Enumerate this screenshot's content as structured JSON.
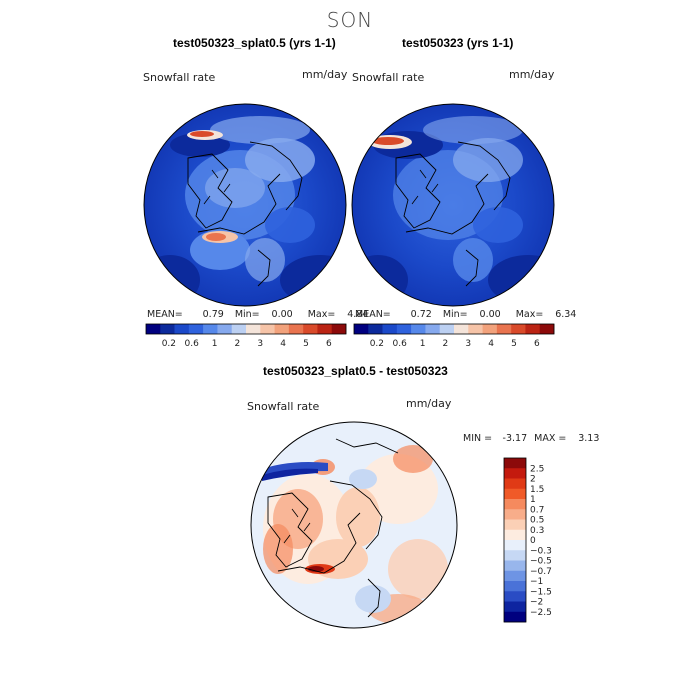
{
  "season": "SON",
  "panels": [
    {
      "title": "test050323_splat0.5 (yrs 1-1)",
      "variable": "Snowfall rate",
      "units": "mm/day",
      "stats": {
        "mean_label": "MEAN=",
        "mean": "0.79",
        "min_label": "Min=",
        "min": "0.00",
        "max_label": "Max=",
        "max": "4.84"
      }
    },
    {
      "title": "test050323 (yrs 1-1)",
      "variable": "Snowfall rate",
      "units": "mm/day",
      "stats": {
        "mean_label": "MEAN=",
        "mean": "0.72",
        "min_label": "Min=",
        "min": "0.00",
        "max_label": "Max=",
        "max": "6.34"
      }
    },
    {
      "title": "test050323_splat0.5 - test050323",
      "variable": "Snowfall rate",
      "units": "mm/day",
      "stats": {
        "min_label": "MIN =",
        "min": "-3.17",
        "max_label": "MAX =",
        "max": "3.13"
      }
    }
  ],
  "chart_data": [
    {
      "type": "heatmap",
      "projection": "north-polar-stereographic",
      "title": "test050323_splat0.5 (yrs 1-1)",
      "variable": "Snowfall rate",
      "units": "mm/day",
      "mean": 0.79,
      "min": 0.0,
      "max": 4.84,
      "colorbar": {
        "ticks": [
          "0.2",
          "0.6",
          "1",
          "2",
          "3",
          "4",
          "5",
          "6"
        ],
        "colors": [
          "#00007f",
          "#0c2a9c",
          "#1b49c9",
          "#2f62dd",
          "#5688ea",
          "#86a9ee",
          "#bcd0f2",
          "#f4e4da",
          "#f6c4a8",
          "#f2a27c",
          "#e9744f",
          "#d94a2a",
          "#bb2414",
          "#8c0a0a"
        ]
      }
    },
    {
      "type": "heatmap",
      "projection": "north-polar-stereographic",
      "title": "test050323 (yrs 1-1)",
      "variable": "Snowfall rate",
      "units": "mm/day",
      "mean": 0.72,
      "min": 0.0,
      "max": 6.34,
      "colorbar": {
        "ticks": [
          "0.2",
          "0.6",
          "1",
          "2",
          "3",
          "4",
          "5",
          "6"
        ],
        "colors": [
          "#00007f",
          "#0c2a9c",
          "#1b49c9",
          "#2f62dd",
          "#5688ea",
          "#86a9ee",
          "#bcd0f2",
          "#f4e4da",
          "#f6c4a8",
          "#f2a27c",
          "#e9744f",
          "#d94a2a",
          "#bb2414",
          "#8c0a0a"
        ]
      }
    },
    {
      "type": "heatmap",
      "projection": "north-polar-stereographic",
      "title": "test050323_splat0.5 - test050323",
      "variable": "Snowfall rate",
      "units": "mm/day",
      "min": -3.17,
      "max": 3.13,
      "colorbar": {
        "ticks": [
          "2.5",
          "2",
          "1.5",
          "1",
          "0.7",
          "0.5",
          "0.3",
          "0",
          "−0.3",
          "−0.5",
          "−0.7",
          "−1",
          "−1.5",
          "−2",
          "−2.5"
        ],
        "colors": [
          "#8c0a0a",
          "#c41a0e",
          "#e03a16",
          "#f05a28",
          "#f58a5e",
          "#f8ad8a",
          "#fbd0b6",
          "#fdece0",
          "#e8f0fb",
          "#c6d8f4",
          "#98b6ec",
          "#6e94e4",
          "#4a72d8",
          "#2a4cc4",
          "#0e24a0",
          "#00007f"
        ]
      }
    }
  ]
}
